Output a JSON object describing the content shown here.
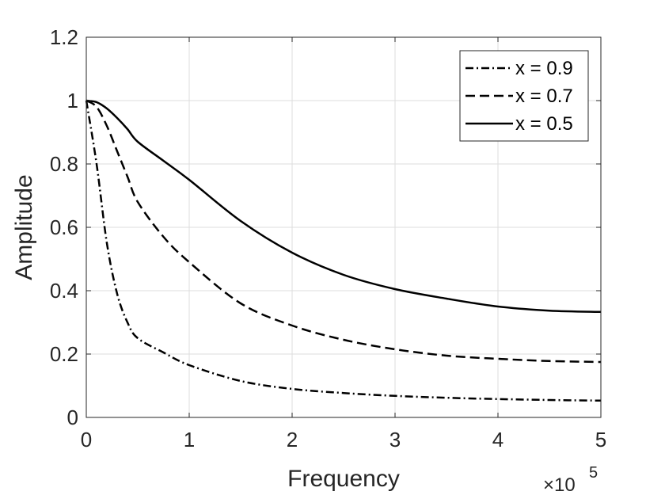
{
  "chart_data": {
    "type": "line",
    "xlabel": "Frequency",
    "ylabel": "Amplitude",
    "xlim": [
      0,
      5
    ],
    "ylim": [
      0,
      1.2
    ],
    "x_multiplier": "×10",
    "x_multiplier_exp": "5",
    "xticks": [
      0,
      1,
      2,
      3,
      4,
      5
    ],
    "xtick_labels": [
      "0",
      "1",
      "2",
      "3",
      "4",
      "5"
    ],
    "yticks": [
      0,
      0.2,
      0.4,
      0.6,
      0.8,
      1.0,
      1.2
    ],
    "ytick_labels": [
      "0",
      "0.2",
      "0.4",
      "0.6",
      "0.8",
      "1",
      "1.2"
    ],
    "grid": true,
    "legend_position": "top-right",
    "series": [
      {
        "name": "x = 0.9",
        "style": "dashdot",
        "x": [
          0,
          0.1,
          0.2,
          0.3,
          0.4,
          0.5,
          0.75,
          1.0,
          1.5,
          2.0,
          2.5,
          3.0,
          3.5,
          4.0,
          4.5,
          5.0
        ],
        "y": [
          1.0,
          0.8,
          0.55,
          0.39,
          0.3,
          0.25,
          0.205,
          0.165,
          0.115,
          0.09,
          0.077,
          0.068,
          0.062,
          0.058,
          0.055,
          0.053
        ]
      },
      {
        "name": "x = 0.7",
        "style": "dashed",
        "x": [
          0,
          0.1,
          0.2,
          0.3,
          0.4,
          0.5,
          0.75,
          1.0,
          1.5,
          2.0,
          2.5,
          3.0,
          3.5,
          4.0,
          4.5,
          5.0
        ],
        "y": [
          1.0,
          0.98,
          0.92,
          0.84,
          0.76,
          0.68,
          0.57,
          0.49,
          0.36,
          0.29,
          0.245,
          0.215,
          0.195,
          0.185,
          0.178,
          0.175
        ]
      },
      {
        "name": "x = 0.5",
        "style": "solid",
        "x": [
          0,
          0.1,
          0.2,
          0.3,
          0.4,
          0.5,
          0.75,
          1.0,
          1.5,
          2.0,
          2.5,
          3.0,
          3.5,
          4.0,
          4.5,
          5.0
        ],
        "y": [
          1.0,
          0.995,
          0.975,
          0.945,
          0.91,
          0.87,
          0.81,
          0.75,
          0.62,
          0.52,
          0.45,
          0.405,
          0.375,
          0.35,
          0.337,
          0.333
        ]
      }
    ]
  }
}
